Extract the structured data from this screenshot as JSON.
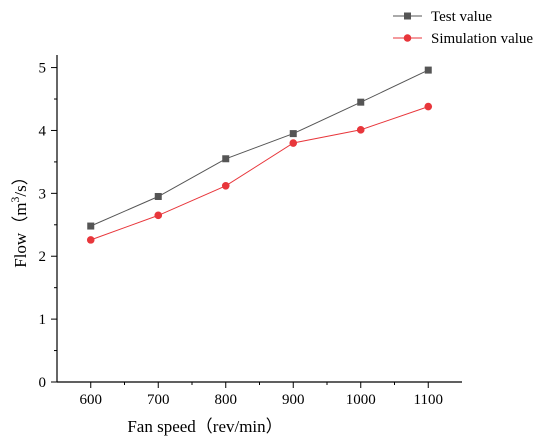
{
  "chart_data": {
    "type": "line",
    "xlabel": "Fan speed（rev/min）",
    "ylabel_prefix": "Flow（m",
    "ylabel_sup": "3",
    "ylabel_suffix": "/s）",
    "x": [
      600,
      700,
      800,
      900,
      1000,
      1100
    ],
    "x_tick_labels": [
      "600",
      "700",
      "800",
      "900",
      "1000",
      "1100"
    ],
    "y_tick_labels": [
      "0",
      "1",
      "2",
      "3",
      "4",
      "5"
    ],
    "xlim": [
      550,
      1150
    ],
    "ylim": [
      0,
      5.2
    ],
    "y_ticks": [
      0,
      1,
      2,
      3,
      4,
      5
    ],
    "grid": false,
    "legend_position": "top-right",
    "series": [
      {
        "name": "Test value",
        "values": [
          2.48,
          2.95,
          3.55,
          3.95,
          4.45,
          4.96
        ],
        "color": "#555555",
        "marker": "square"
      },
      {
        "name": "Simulation value",
        "values": [
          2.26,
          2.65,
          3.12,
          3.8,
          4.01,
          4.38
        ],
        "color": "#e8363b",
        "marker": "circle"
      }
    ]
  }
}
